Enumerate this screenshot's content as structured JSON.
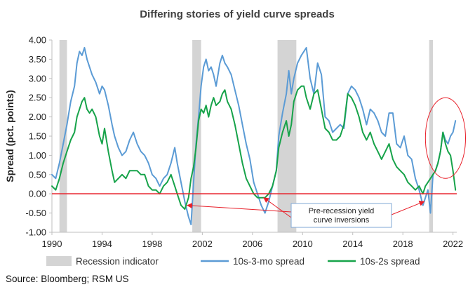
{
  "chart_data": {
    "type": "line",
    "title": "Differing stories of yield curve spreads",
    "ylabel": "Spread (pct. points)",
    "xlabel": "",
    "xlim": [
      1990,
      2022.3
    ],
    "ylim": [
      -1.0,
      4.0
    ],
    "x_ticks": [
      1990,
      1994,
      1998,
      2002,
      2006,
      2010,
      2014,
      2018,
      2022
    ],
    "x_tick_labels": [
      "1990",
      "1994",
      "1998",
      "2002",
      "2006",
      "2010",
      "2014",
      "2018",
      "2022"
    ],
    "y_ticks": [
      -1.0,
      -0.5,
      0.0,
      0.5,
      1.0,
      1.5,
      2.0,
      2.5,
      3.0,
      3.5,
      4.0
    ],
    "y_tick_labels": [
      "-1.00",
      "-0.50",
      "0.00",
      "0.50",
      "1.00",
      "1.50",
      "2.00",
      "2.50",
      "3.00",
      "3.50",
      "4.00"
    ],
    "grid": false,
    "legend_position": "bottom",
    "zero_line_color": "#e8202a",
    "recessions": {
      "name": "Recession indicator",
      "color": "#d4d4d4",
      "periods": [
        [
          1990.6,
          1991.2
        ],
        [
          2001.2,
          2001.9
        ],
        [
          2008.0,
          2009.5
        ],
        [
          2020.1,
          2020.4
        ]
      ]
    },
    "series": [
      {
        "name": "10s-3-mo spread",
        "color": "#5b9bd5",
        "points": [
          [
            1990.0,
            0.5
          ],
          [
            1990.3,
            0.4
          ],
          [
            1990.6,
            0.8
          ],
          [
            1990.9,
            1.3
          ],
          [
            1991.2,
            1.8
          ],
          [
            1991.5,
            2.4
          ],
          [
            1991.8,
            2.8
          ],
          [
            1992.0,
            3.4
          ],
          [
            1992.2,
            3.7
          ],
          [
            1992.4,
            3.6
          ],
          [
            1992.6,
            3.8
          ],
          [
            1992.8,
            3.5
          ],
          [
            1993.0,
            3.3
          ],
          [
            1993.2,
            3.1
          ],
          [
            1993.5,
            2.9
          ],
          [
            1993.8,
            2.6
          ],
          [
            1994.0,
            2.8
          ],
          [
            1994.2,
            2.7
          ],
          [
            1994.5,
            2.3
          ],
          [
            1994.8,
            1.8
          ],
          [
            1995.0,
            1.5
          ],
          [
            1995.3,
            1.2
          ],
          [
            1995.6,
            1.0
          ],
          [
            1995.9,
            1.1
          ],
          [
            1996.2,
            1.4
          ],
          [
            1996.5,
            1.6
          ],
          [
            1996.8,
            1.3
          ],
          [
            1997.1,
            1.1
          ],
          [
            1997.4,
            1.0
          ],
          [
            1997.7,
            0.8
          ],
          [
            1998.0,
            0.5
          ],
          [
            1998.3,
            0.4
          ],
          [
            1998.6,
            0.2
          ],
          [
            1998.9,
            0.4
          ],
          [
            1999.2,
            0.5
          ],
          [
            1999.5,
            0.8
          ],
          [
            1999.8,
            1.2
          ],
          [
            2000.0,
            0.8
          ],
          [
            2000.3,
            0.3
          ],
          [
            2000.6,
            -0.2
          ],
          [
            2000.9,
            -0.6
          ],
          [
            2001.1,
            -0.8
          ],
          [
            2001.3,
            0.3
          ],
          [
            2001.5,
            1.3
          ],
          [
            2001.7,
            2.0
          ],
          [
            2001.9,
            2.8
          ],
          [
            2002.1,
            3.3
          ],
          [
            2002.3,
            3.5
          ],
          [
            2002.5,
            3.2
          ],
          [
            2002.7,
            3.3
          ],
          [
            2002.9,
            3.1
          ],
          [
            2003.1,
            2.8
          ],
          [
            2003.4,
            3.4
          ],
          [
            2003.6,
            3.6
          ],
          [
            2003.8,
            3.4
          ],
          [
            2004.0,
            3.3
          ],
          [
            2004.3,
            3.1
          ],
          [
            2004.6,
            2.7
          ],
          [
            2004.9,
            2.3
          ],
          [
            2005.2,
            1.8
          ],
          [
            2005.5,
            1.3
          ],
          [
            2005.8,
            0.9
          ],
          [
            2006.1,
            0.3
          ],
          [
            2006.4,
            0.0
          ],
          [
            2006.7,
            -0.3
          ],
          [
            2007.0,
            -0.5
          ],
          [
            2007.3,
            -0.2
          ],
          [
            2007.6,
            0.2
          ],
          [
            2007.9,
            0.6
          ],
          [
            2008.1,
            1.5
          ],
          [
            2008.4,
            2.1
          ],
          [
            2008.7,
            2.6
          ],
          [
            2008.9,
            3.2
          ],
          [
            2009.1,
            2.6
          ],
          [
            2009.3,
            3.0
          ],
          [
            2009.6,
            3.4
          ],
          [
            2009.9,
            3.6
          ],
          [
            2010.1,
            3.7
          ],
          [
            2010.3,
            3.8
          ],
          [
            2010.6,
            3.0
          ],
          [
            2010.9,
            2.6
          ],
          [
            2011.2,
            3.4
          ],
          [
            2011.5,
            3.1
          ],
          [
            2011.8,
            2.0
          ],
          [
            2012.1,
            1.9
          ],
          [
            2012.4,
            1.6
          ],
          [
            2012.7,
            1.7
          ],
          [
            2013.0,
            1.8
          ],
          [
            2013.3,
            1.7
          ],
          [
            2013.6,
            2.6
          ],
          [
            2013.9,
            2.8
          ],
          [
            2014.2,
            2.7
          ],
          [
            2014.5,
            2.5
          ],
          [
            2014.8,
            2.2
          ],
          [
            2015.1,
            1.8
          ],
          [
            2015.4,
            2.2
          ],
          [
            2015.7,
            2.1
          ],
          [
            2016.0,
            1.9
          ],
          [
            2016.3,
            1.6
          ],
          [
            2016.6,
            1.5
          ],
          [
            2016.9,
            2.1
          ],
          [
            2017.2,
            2.1
          ],
          [
            2017.5,
            1.3
          ],
          [
            2017.8,
            1.2
          ],
          [
            2018.1,
            1.5
          ],
          [
            2018.4,
            1.0
          ],
          [
            2018.7,
            0.9
          ],
          [
            2019.0,
            0.4
          ],
          [
            2019.3,
            0.1
          ],
          [
            2019.6,
            -0.3
          ],
          [
            2019.8,
            -0.1
          ],
          [
            2020.0,
            0.1
          ],
          [
            2020.2,
            -0.5
          ],
          [
            2020.4,
            0.5
          ],
          [
            2020.6,
            0.6
          ],
          [
            2020.8,
            0.8
          ],
          [
            2021.0,
            1.1
          ],
          [
            2021.2,
            1.6
          ],
          [
            2021.4,
            1.4
          ],
          [
            2021.6,
            1.3
          ],
          [
            2021.8,
            1.5
          ],
          [
            2022.0,
            1.6
          ],
          [
            2022.2,
            1.9
          ]
        ]
      },
      {
        "name": "10s-2s spread",
        "color": "#17a34a",
        "points": [
          [
            1990.0,
            0.2
          ],
          [
            1990.3,
            0.1
          ],
          [
            1990.6,
            0.4
          ],
          [
            1990.9,
            0.8
          ],
          [
            1991.2,
            1.1
          ],
          [
            1991.5,
            1.4
          ],
          [
            1991.8,
            1.6
          ],
          [
            1992.0,
            2.0
          ],
          [
            1992.2,
            2.2
          ],
          [
            1992.4,
            2.4
          ],
          [
            1992.6,
            2.5
          ],
          [
            1992.8,
            2.2
          ],
          [
            1993.0,
            2.1
          ],
          [
            1993.2,
            2.2
          ],
          [
            1993.5,
            2.0
          ],
          [
            1993.8,
            1.5
          ],
          [
            1994.0,
            1.3
          ],
          [
            1994.2,
            1.7
          ],
          [
            1994.5,
            1.1
          ],
          [
            1994.8,
            0.6
          ],
          [
            1995.0,
            0.3
          ],
          [
            1995.3,
            0.4
          ],
          [
            1995.6,
            0.5
          ],
          [
            1995.9,
            0.4
          ],
          [
            1996.2,
            0.6
          ],
          [
            1996.5,
            0.6
          ],
          [
            1996.8,
            0.6
          ],
          [
            1997.1,
            0.5
          ],
          [
            1997.4,
            0.5
          ],
          [
            1997.7,
            0.2
          ],
          [
            1998.0,
            0.1
          ],
          [
            1998.3,
            0.1
          ],
          [
            1998.6,
            0.0
          ],
          [
            1998.9,
            0.2
          ],
          [
            1999.2,
            0.3
          ],
          [
            1999.5,
            0.5
          ],
          [
            1999.8,
            0.2
          ],
          [
            2000.0,
            0.0
          ],
          [
            2000.3,
            -0.3
          ],
          [
            2000.6,
            -0.4
          ],
          [
            2000.9,
            -0.1
          ],
          [
            2001.1,
            0.4
          ],
          [
            2001.3,
            0.7
          ],
          [
            2001.5,
            1.2
          ],
          [
            2001.7,
            1.9
          ],
          [
            2001.9,
            2.2
          ],
          [
            2002.1,
            2.1
          ],
          [
            2002.3,
            2.3
          ],
          [
            2002.5,
            2.0
          ],
          [
            2002.7,
            2.3
          ],
          [
            2002.9,
            2.5
          ],
          [
            2003.1,
            2.3
          ],
          [
            2003.4,
            2.4
          ],
          [
            2003.6,
            2.6
          ],
          [
            2003.8,
            2.7
          ],
          [
            2004.0,
            2.4
          ],
          [
            2004.3,
            2.2
          ],
          [
            2004.6,
            1.8
          ],
          [
            2004.9,
            1.3
          ],
          [
            2005.2,
            0.8
          ],
          [
            2005.5,
            0.4
          ],
          [
            2005.8,
            0.2
          ],
          [
            2006.1,
            0.0
          ],
          [
            2006.4,
            -0.1
          ],
          [
            2006.7,
            -0.1
          ],
          [
            2007.0,
            -0.1
          ],
          [
            2007.3,
            0.0
          ],
          [
            2007.6,
            0.2
          ],
          [
            2007.9,
            0.6
          ],
          [
            2008.1,
            1.2
          ],
          [
            2008.4,
            1.6
          ],
          [
            2008.7,
            1.9
          ],
          [
            2008.9,
            1.5
          ],
          [
            2009.1,
            1.8
          ],
          [
            2009.3,
            2.4
          ],
          [
            2009.6,
            2.7
          ],
          [
            2009.9,
            2.8
          ],
          [
            2010.1,
            2.8
          ],
          [
            2010.3,
            2.5
          ],
          [
            2010.6,
            2.2
          ],
          [
            2010.9,
            2.6
          ],
          [
            2011.2,
            2.7
          ],
          [
            2011.5,
            2.2
          ],
          [
            2011.8,
            1.7
          ],
          [
            2012.1,
            1.6
          ],
          [
            2012.4,
            1.4
          ],
          [
            2012.7,
            1.4
          ],
          [
            2013.0,
            1.5
          ],
          [
            2013.3,
            1.8
          ],
          [
            2013.6,
            2.6
          ],
          [
            2013.9,
            2.5
          ],
          [
            2014.2,
            2.3
          ],
          [
            2014.5,
            2.0
          ],
          [
            2014.8,
            1.6
          ],
          [
            2015.1,
            1.4
          ],
          [
            2015.4,
            1.6
          ],
          [
            2015.7,
            1.3
          ],
          [
            2016.0,
            1.1
          ],
          [
            2016.3,
            0.9
          ],
          [
            2016.6,
            1.1
          ],
          [
            2016.9,
            1.3
          ],
          [
            2017.2,
            0.9
          ],
          [
            2017.5,
            0.7
          ],
          [
            2017.8,
            0.6
          ],
          [
            2018.1,
            0.5
          ],
          [
            2018.4,
            0.3
          ],
          [
            2018.7,
            0.2
          ],
          [
            2019.0,
            0.1
          ],
          [
            2019.3,
            0.2
          ],
          [
            2019.6,
            0.0
          ],
          [
            2019.8,
            0.2
          ],
          [
            2020.0,
            0.3
          ],
          [
            2020.2,
            0.4
          ],
          [
            2020.4,
            0.5
          ],
          [
            2020.6,
            0.6
          ],
          [
            2020.8,
            0.8
          ],
          [
            2021.0,
            1.1
          ],
          [
            2021.2,
            1.6
          ],
          [
            2021.4,
            1.3
          ],
          [
            2021.6,
            1.1
          ],
          [
            2021.8,
            1.0
          ],
          [
            2022.0,
            0.6
          ],
          [
            2022.2,
            0.1
          ]
        ]
      }
    ],
    "annotations": [
      {
        "text_lines": [
          "Pre-recession yield",
          "curve inversions"
        ],
        "arrows_to": [
          [
            2000.8,
            -0.3
          ],
          [
            2006.9,
            -0.1
          ],
          [
            2019.7,
            -0.2
          ]
        ]
      }
    ],
    "highlight": {
      "shape": "ellipse",
      "color": "#e8202a",
      "center": [
        2021.4,
        1.45
      ],
      "radius_x": 1.6,
      "radius_y": 1.05
    }
  },
  "source": "Source: Bloomberg; RSM US"
}
